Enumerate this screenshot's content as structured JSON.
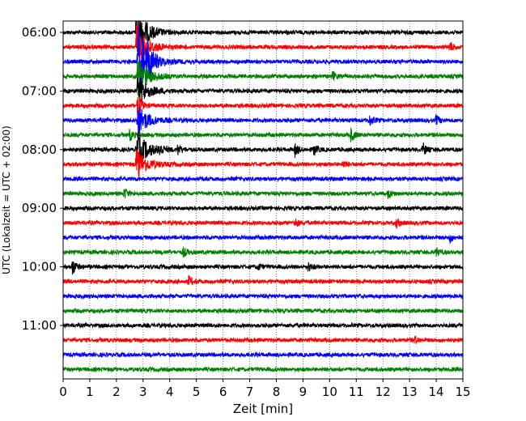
{
  "chart_data": {
    "type": "line",
    "title": "",
    "xlabel": "Zeit  [min]",
    "ylabel": "UTC (Lokalzeit = UTC + 02:00)",
    "xlim": [
      0,
      15
    ],
    "x_ticks": [
      "0",
      "1",
      "2",
      "3",
      "4",
      "5",
      "6",
      "7",
      "8",
      "9",
      "10",
      "11",
      "12",
      "13",
      "14",
      "15"
    ],
    "y_ticks": [
      "06:00",
      "07:00",
      "08:00",
      "09:00",
      "10:00",
      "11:00"
    ],
    "grid": "vertical dotted lines at each minute",
    "trace_colors": [
      "#000000",
      "#ff0000",
      "#0000ff",
      "#008000"
    ],
    "trace_interval_min": 15,
    "traces": [
      {
        "start": "06:00",
        "color": "#000000",
        "events": [
          {
            "t": 2.75,
            "amp": 2.0
          }
        ]
      },
      {
        "start": "06:15",
        "color": "#ff0000",
        "events": [
          {
            "t": 2.75,
            "amp": 1.8
          },
          {
            "t": 14.5,
            "amp": 0.4
          }
        ]
      },
      {
        "start": "06:30",
        "color": "#0000ff",
        "events": [
          {
            "t": 2.8,
            "amp": 3.0
          },
          {
            "t": 3.2,
            "amp": 0.8
          }
        ]
      },
      {
        "start": "06:45",
        "color": "#008000",
        "events": [
          {
            "t": 2.8,
            "amp": 1.4
          },
          {
            "t": 10.1,
            "amp": 0.35
          }
        ]
      },
      {
        "start": "07:00",
        "color": "#000000",
        "events": [
          {
            "t": 2.8,
            "amp": 1.2
          }
        ]
      },
      {
        "start": "07:15",
        "color": "#ff0000",
        "events": [
          {
            "t": 2.8,
            "amp": 1.0
          }
        ]
      },
      {
        "start": "07:30",
        "color": "#0000ff",
        "events": [
          {
            "t": 2.8,
            "amp": 1.2
          },
          {
            "t": 11.5,
            "amp": 0.4
          },
          {
            "t": 14.0,
            "amp": 0.35
          }
        ]
      },
      {
        "start": "07:45",
        "color": "#008000",
        "events": [
          {
            "t": 2.5,
            "amp": 0.4
          },
          {
            "t": 10.8,
            "amp": 0.5
          }
        ]
      },
      {
        "start": "08:00",
        "color": "#000000",
        "events": [
          {
            "t": 2.75,
            "amp": 1.5
          },
          {
            "t": 3.6,
            "amp": 0.5
          },
          {
            "t": 4.3,
            "amp": 0.4
          },
          {
            "t": 8.7,
            "amp": 0.5
          },
          {
            "t": 9.4,
            "amp": 0.45
          },
          {
            "t": 13.5,
            "amp": 0.5
          }
        ]
      },
      {
        "start": "08:15",
        "color": "#ff0000",
        "events": [
          {
            "t": 2.75,
            "amp": 1.2
          },
          {
            "t": 10.5,
            "amp": 0.25
          }
        ]
      },
      {
        "start": "08:30",
        "color": "#0000ff",
        "events": []
      },
      {
        "start": "08:45",
        "color": "#008000",
        "events": [
          {
            "t": 2.3,
            "amp": 0.4
          },
          {
            "t": 12.2,
            "amp": 0.35
          }
        ]
      },
      {
        "start": "09:00",
        "color": "#000000",
        "events": []
      },
      {
        "start": "09:15",
        "color": "#ff0000",
        "events": [
          {
            "t": 8.7,
            "amp": 0.35
          },
          {
            "t": 12.5,
            "amp": 0.35
          }
        ]
      },
      {
        "start": "09:30",
        "color": "#0000ff",
        "events": [
          {
            "t": 14.5,
            "amp": 0.35
          }
        ]
      },
      {
        "start": "09:45",
        "color": "#008000",
        "events": [
          {
            "t": 4.5,
            "amp": 0.35
          },
          {
            "t": 14.0,
            "amp": 0.3
          }
        ]
      },
      {
        "start": "10:00",
        "color": "#000000",
        "events": [
          {
            "t": 0.35,
            "amp": 0.6
          },
          {
            "t": 7.3,
            "amp": 0.25
          },
          {
            "t": 9.2,
            "amp": 0.3
          }
        ]
      },
      {
        "start": "10:15",
        "color": "#ff0000",
        "events": [
          {
            "t": 4.7,
            "amp": 0.4
          }
        ]
      },
      {
        "start": "10:30",
        "color": "#0000ff",
        "events": []
      },
      {
        "start": "10:45",
        "color": "#008000",
        "events": []
      },
      {
        "start": "11:00",
        "color": "#000000",
        "events": []
      },
      {
        "start": "11:15",
        "color": "#ff0000",
        "events": [
          {
            "t": 13.2,
            "amp": 0.25
          }
        ]
      },
      {
        "start": "11:30",
        "color": "#0000ff",
        "events": []
      },
      {
        "start": "11:45",
        "color": "#008000",
        "events": []
      }
    ]
  }
}
